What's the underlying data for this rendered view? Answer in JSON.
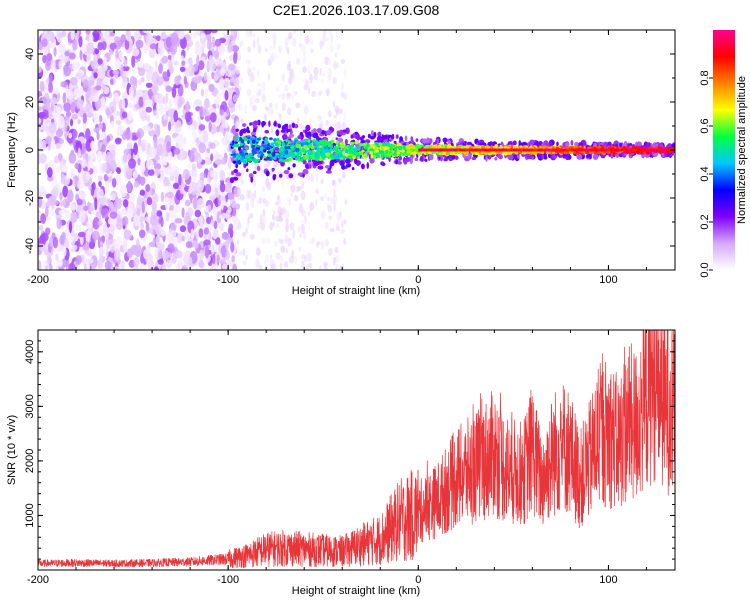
{
  "title": "C2E1.2026.103.17.09.G08",
  "chart_data": [
    {
      "type": "heatmap",
      "title": "C2E1.2026.103.17.09.G08",
      "xlabel": "Height of straight line (km)",
      "ylabel": "Frequency (Hz)",
      "xlim": [
        -200,
        135
      ],
      "ylim": [
        -50,
        50
      ],
      "x_ticks": [
        -200,
        -100,
        0,
        100
      ],
      "y_ticks": [
        -40,
        -20,
        0,
        20,
        40
      ],
      "colorbar": {
        "label": "Normalized spectral amplitude",
        "range": [
          0,
          1
        ],
        "ticks": [
          0.0,
          0.2,
          0.4,
          0.6,
          0.8
        ],
        "colors": [
          "#ffffff",
          "#d6a8ff",
          "#8000ff",
          "#0000ff",
          "#00c8ff",
          "#00ff40",
          "#ffff00",
          "#ff8000",
          "#ff0000",
          "#ff0090"
        ]
      },
      "features": {
        "noise_region_x": [
          -200,
          -95
        ],
        "sparse_noise_region_x": [
          -95,
          -38
        ],
        "signal_frequency_hz": 0,
        "signal_start_x": -98,
        "signal_halfwidth_hz": [
          [
            -98,
            6
          ],
          [
            -40,
            4
          ],
          [
            0,
            2
          ],
          [
            130,
            1
          ]
        ]
      }
    },
    {
      "type": "line",
      "xlabel": "Height of straight line (km)",
      "ylabel": "SNR (10 * v/v)",
      "xlim": [
        -200,
        135
      ],
      "ylim": [
        0,
        4400
      ],
      "x_ticks": [
        -200,
        -100,
        0,
        100
      ],
      "y_ticks": [
        1000,
        2000,
        3000,
        4000
      ],
      "series": [
        {
          "name": "SNR",
          "color": "#e8353a",
          "x": [
            -200,
            -180,
            -160,
            -140,
            -120,
            -100,
            -90,
            -80,
            -70,
            -60,
            -50,
            -40,
            -30,
            -20,
            -10,
            0,
            10,
            20,
            30,
            40,
            45,
            50,
            55,
            60,
            65,
            70,
            75,
            80,
            85,
            90,
            95,
            100,
            105,
            110,
            115,
            120,
            125,
            130,
            135
          ],
          "values": [
            120,
            130,
            120,
            130,
            150,
            200,
            270,
            380,
            400,
            380,
            360,
            340,
            460,
            560,
            900,
            1050,
            1280,
            1680,
            1880,
            2150,
            1900,
            1800,
            1750,
            2200,
            1620,
            2050,
            2300,
            2150,
            1650,
            2000,
            2450,
            2550,
            2300,
            2700,
            2650,
            3200,
            3600,
            3050,
            2950
          ]
        }
      ]
    }
  ]
}
